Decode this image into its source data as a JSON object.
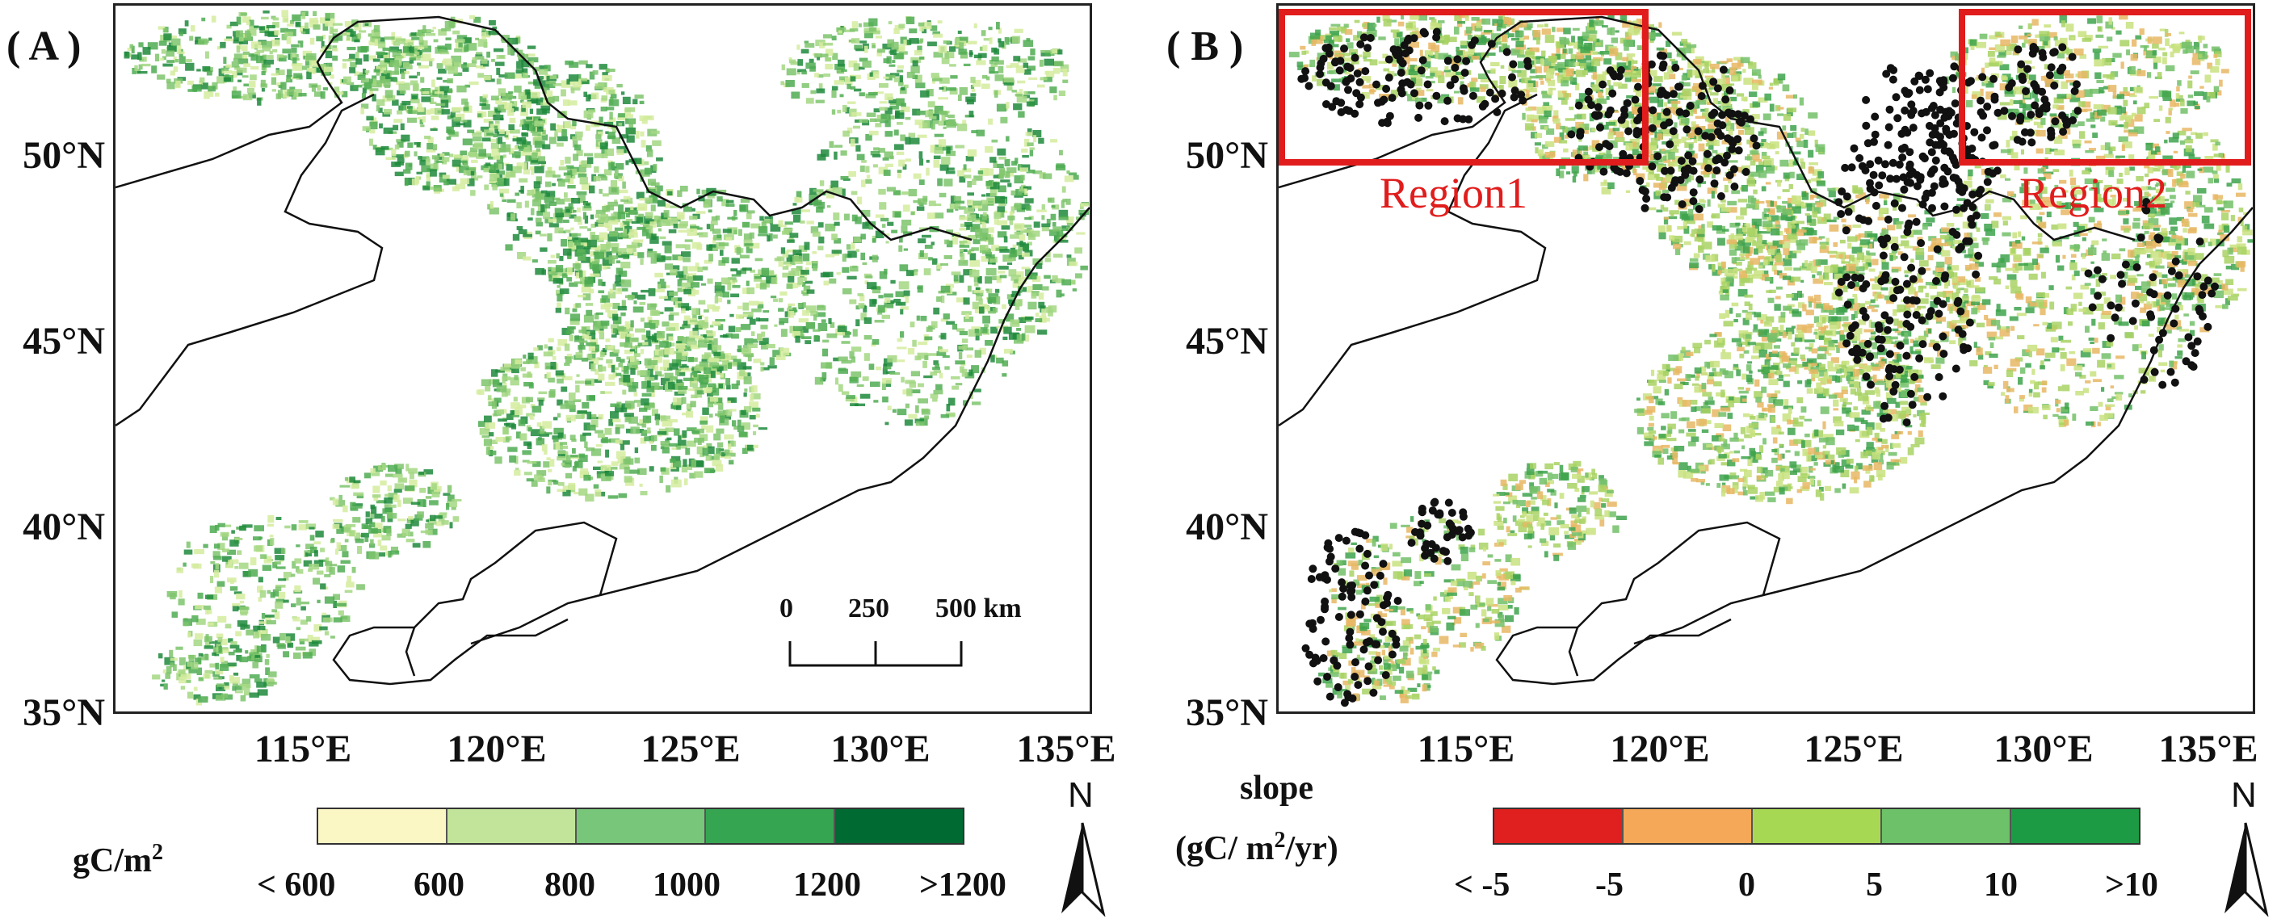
{
  "panels": [
    {
      "label": "( A )",
      "lat_labels": [
        "50°N",
        "45°N",
        "40°N",
        "35°N"
      ],
      "lon_labels": [
        "115°E",
        "120°E",
        "125°E",
        "130°E",
        "135°E"
      ],
      "scale_bar": {
        "ticks": [
          "0",
          "250",
          "500 km"
        ]
      },
      "legend": {
        "title_main": "gC/m",
        "title_sup": "2",
        "ticks": [
          "< 600",
          "600",
          "800",
          "1000",
          "1200",
          ">1200"
        ],
        "colors": [
          "#fbf7c5",
          "#c2e49a",
          "#78c679",
          "#36a552",
          "#006a33"
        ]
      },
      "north": "N",
      "data_palette": [
        "#d5ec9f",
        "#a3d783",
        "#7ec46c",
        "#4fab52",
        "#1f8a3c"
      ]
    },
    {
      "label": "( B )",
      "lat_labels": [
        "50°N",
        "45°N",
        "40°N",
        "35°N"
      ],
      "lon_labels": [
        "115°E",
        "120°E",
        "125°E",
        "130°E",
        "135°E"
      ],
      "regions": [
        {
          "name": "Region1",
          "color": "#e11c1c"
        },
        {
          "name": "Region2",
          "color": "#e11c1c"
        }
      ],
      "legend": {
        "title_line1": "slope",
        "title_line2_pre": "(gC/ m",
        "title_line2_sup": "2",
        "title_line2_post": "/yr)",
        "ticks": [
          "< -5",
          "-5",
          "0",
          "5",
          "10",
          ">10"
        ],
        "colors": [
          "#e01f1f",
          "#f4a858",
          "#a6d853",
          "#6dc168",
          "#1d9b44"
        ]
      },
      "north": "N",
      "data_palette": [
        "#c9e27f",
        "#a8d264",
        "#e8b764",
        "#73c06a",
        "#3ea34c"
      ]
    }
  ]
}
